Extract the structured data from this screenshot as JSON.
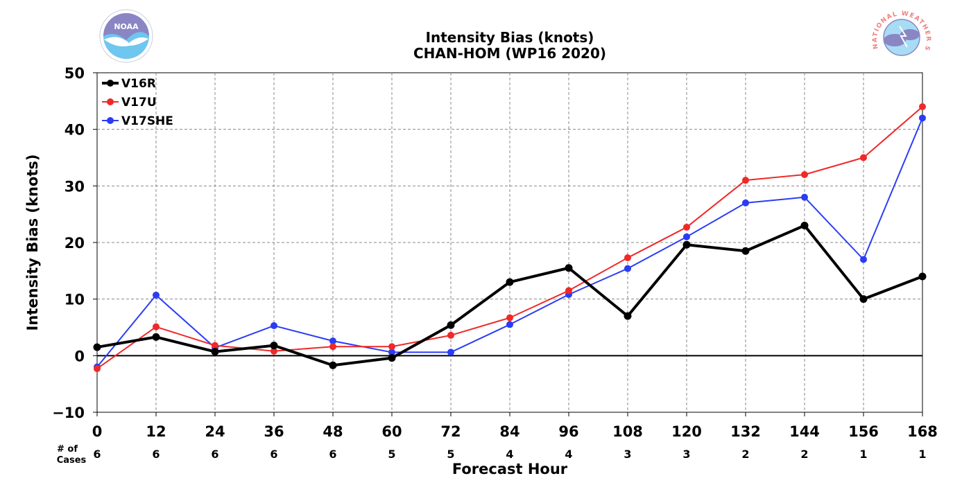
{
  "header": {
    "title_line1": "Intensity Bias (knots)",
    "title_line2": "CHAN-HOM (WP16 2020)"
  },
  "logos": {
    "left": {
      "text": "NOAA",
      "colors": {
        "top": "#8a86c4",
        "bottom": "#6fc6ee"
      }
    },
    "right": {
      "text": "NATIONAL WEATHER SERVICE",
      "colors": {
        "ring": "#f08080",
        "cloud": "#8a86c4",
        "sky": "#a8dcf4"
      }
    }
  },
  "chart_data": {
    "type": "line",
    "title": "Intensity Bias (knots)",
    "subtitle": "CHAN-HOM (WP16 2020)",
    "xlabel": "Forecast Hour",
    "ylabel": "Intensity Bias (knots)",
    "x": [
      0,
      12,
      24,
      36,
      48,
      60,
      72,
      84,
      96,
      108,
      120,
      132,
      144,
      156,
      168
    ],
    "xlim": [
      0,
      168
    ],
    "ylim": [
      -10,
      50
    ],
    "yticks": [
      -10,
      0,
      10,
      20,
      30,
      40,
      50
    ],
    "ytick_labels": [
      "−10",
      "0",
      "10",
      "20",
      "30",
      "40",
      "50"
    ],
    "grid": true,
    "legend_position": "top-left",
    "cases_label_line1": "# of",
    "cases_label_line2": "Cases",
    "cases": [
      6,
      6,
      6,
      6,
      6,
      5,
      5,
      4,
      4,
      3,
      3,
      2,
      2,
      1,
      1
    ],
    "series": [
      {
        "name": "V16R",
        "color": "#000000",
        "width": 4,
        "values": [
          1.5,
          3.3,
          0.7,
          1.8,
          -1.7,
          -0.4,
          5.4,
          13.0,
          15.5,
          7.0,
          19.6,
          18.5,
          23.0,
          10.0,
          14.0
        ]
      },
      {
        "name": "V17U",
        "color": "#f02828",
        "width": 2,
        "values": [
          -2.3,
          5.1,
          1.8,
          0.8,
          1.6,
          1.6,
          3.6,
          6.7,
          11.5,
          17.3,
          22.7,
          31.0,
          32.0,
          35.0,
          44.0
        ]
      },
      {
        "name": "V17SHE",
        "color": "#2a3cf5",
        "width": 2,
        "values": [
          -2.0,
          10.7,
          1.4,
          5.3,
          2.6,
          0.6,
          0.6,
          5.5,
          10.8,
          15.4,
          21.0,
          27.0,
          28.0,
          17.0,
          42.0
        ]
      }
    ]
  }
}
